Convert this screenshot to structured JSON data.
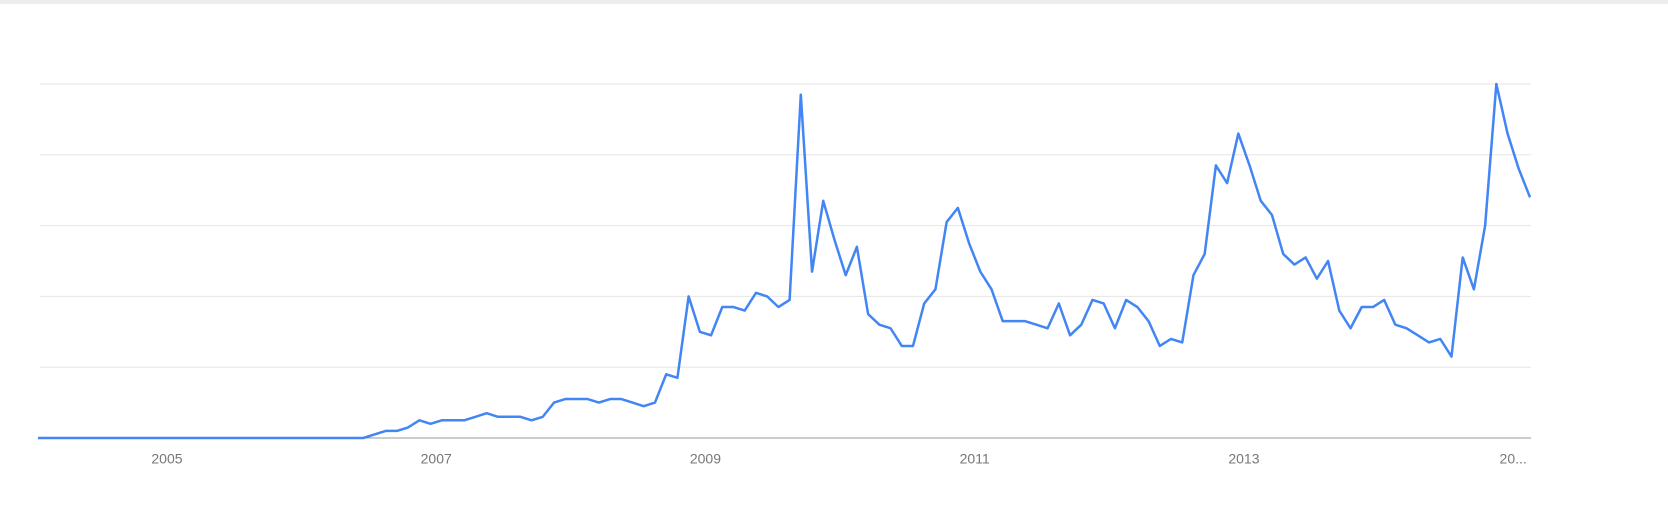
{
  "chart_data": {
    "type": "line",
    "x": [
      "2004-01",
      "2004-02",
      "2004-03",
      "2004-04",
      "2004-05",
      "2004-06",
      "2004-07",
      "2004-08",
      "2004-09",
      "2004-10",
      "2004-11",
      "2004-12",
      "2005-01",
      "2005-02",
      "2005-03",
      "2005-04",
      "2005-05",
      "2005-06",
      "2005-07",
      "2005-08",
      "2005-09",
      "2005-10",
      "2005-11",
      "2005-12",
      "2006-01",
      "2006-02",
      "2006-03",
      "2006-04",
      "2006-05",
      "2006-06",
      "2006-07",
      "2006-08",
      "2006-09",
      "2006-10",
      "2006-11",
      "2006-12",
      "2007-01",
      "2007-02",
      "2007-03",
      "2007-04",
      "2007-05",
      "2007-06",
      "2007-07",
      "2007-08",
      "2007-09",
      "2007-10",
      "2007-11",
      "2007-12",
      "2008-01",
      "2008-02",
      "2008-03",
      "2008-04",
      "2008-05",
      "2008-06",
      "2008-07",
      "2008-08",
      "2008-09",
      "2008-10",
      "2008-11",
      "2008-12",
      "2009-01",
      "2009-02",
      "2009-03",
      "2009-04",
      "2009-05",
      "2009-06",
      "2009-07",
      "2009-08",
      "2009-09",
      "2009-10",
      "2009-11",
      "2009-12",
      "2010-01",
      "2010-02",
      "2010-03",
      "2010-04",
      "2010-05",
      "2010-06",
      "2010-07",
      "2010-08",
      "2010-09",
      "2010-10",
      "2010-11",
      "2010-12",
      "2011-01",
      "2011-02",
      "2011-03",
      "2011-04",
      "2011-05",
      "2011-06",
      "2011-07",
      "2011-08",
      "2011-09",
      "2011-10",
      "2011-11",
      "2011-12",
      "2012-01",
      "2012-02",
      "2012-03",
      "2012-04",
      "2012-05",
      "2012-06",
      "2012-07",
      "2012-08",
      "2012-09",
      "2012-10",
      "2012-11",
      "2012-12",
      "2013-01",
      "2013-02",
      "2013-03",
      "2013-04",
      "2013-05",
      "2013-06",
      "2013-07",
      "2013-08",
      "2013-09",
      "2013-10",
      "2013-11",
      "2013-12",
      "2014-01",
      "2014-02",
      "2014-03",
      "2014-04",
      "2014-05",
      "2014-06",
      "2014-07",
      "2014-08",
      "2014-09",
      "2014-10",
      "2014-11",
      "2014-12",
      "2015-01",
      "2015-02"
    ],
    "series": [
      {
        "color": "#4285f4",
        "values": [
          0,
          0,
          0,
          0,
          0,
          0,
          0,
          0,
          0,
          0,
          0,
          0,
          0,
          0,
          0,
          0,
          0,
          0,
          0,
          0,
          0,
          0,
          0,
          0,
          0,
          0,
          0,
          0,
          0,
          0,
          1,
          2,
          2,
          3,
          5,
          4,
          5,
          5,
          5,
          6,
          7,
          6,
          6,
          6,
          5,
          6,
          10,
          11,
          11,
          11,
          10,
          11,
          11,
          10,
          9,
          10,
          18,
          17,
          40,
          30,
          29,
          37,
          37,
          36,
          41,
          40,
          37,
          39,
          97,
          47,
          67,
          56,
          46,
          54,
          35,
          32,
          31,
          26,
          26,
          38,
          42,
          61,
          65,
          55,
          47,
          42,
          33,
          33,
          33,
          32,
          31,
          38,
          29,
          32,
          39,
          38,
          31,
          39,
          37,
          33,
          26,
          28,
          27,
          46,
          52,
          77,
          72,
          86,
          77,
          67,
          63,
          52,
          49,
          51,
          45,
          50,
          36,
          31,
          37,
          37,
          39,
          32,
          31,
          29,
          27,
          28,
          23,
          51,
          42,
          60,
          100,
          86,
          76,
          68
        ]
      }
    ],
    "xlim": [
      2004,
      2015.125
    ],
    "xticks": [
      2005,
      2007,
      2009,
      2011,
      2013,
      {
        "value": 2015,
        "label": "20..."
      }
    ],
    "ylim": [
      0,
      100
    ],
    "yticks": [
      0,
      20,
      40,
      60,
      80,
      100
    ],
    "grid": true
  }
}
